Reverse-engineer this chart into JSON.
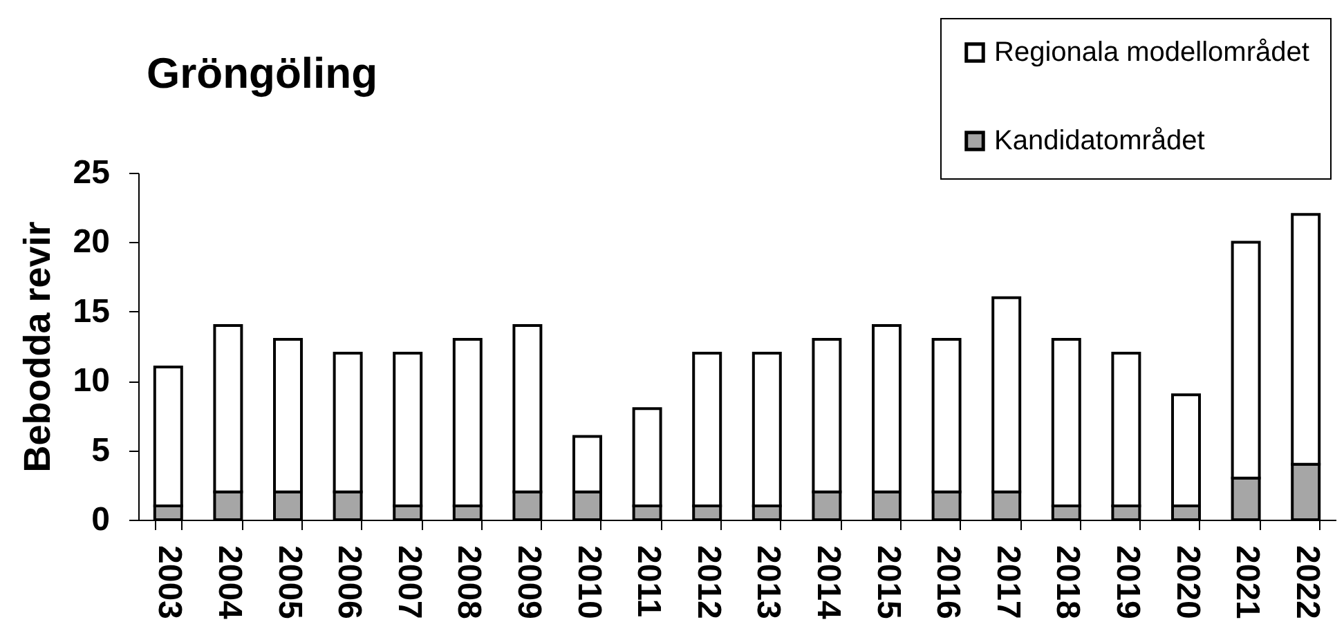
{
  "chart_data": {
    "type": "bar",
    "title": "Gröngöling",
    "ylabel": "Bebodda revir",
    "categories": [
      "2003",
      "2004",
      "2005",
      "2006",
      "2007",
      "2008",
      "2009",
      "2010",
      "2011",
      "2012",
      "2013",
      "2014",
      "2015",
      "2016",
      "2017",
      "2018",
      "2019",
      "2020",
      "2021",
      "2022"
    ],
    "stacked": true,
    "series": [
      {
        "name": "Kandidatområdet",
        "color": "#a6a6a6",
        "values": [
          1,
          2,
          2,
          2,
          1,
          1,
          2,
          2,
          1,
          1,
          1,
          2,
          2,
          2,
          2,
          1,
          1,
          1,
          3,
          4
        ]
      },
      {
        "name": "Regionala modellområdet",
        "color": "#ffffff",
        "values": [
          10,
          12,
          11,
          10,
          11,
          12,
          12,
          4,
          7,
          11,
          11,
          11,
          12,
          11,
          14,
          12,
          11,
          8,
          17,
          18
        ]
      }
    ],
    "ylim": [
      0,
      25
    ],
    "yticks": [
      0,
      5,
      10,
      15,
      20,
      25
    ],
    "legend": "top right"
  }
}
